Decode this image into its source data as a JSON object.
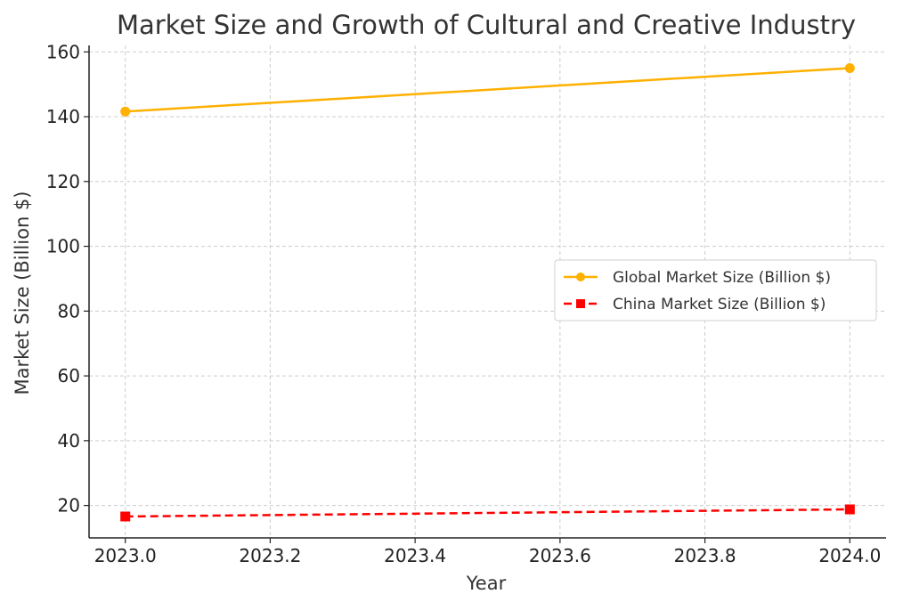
{
  "chart_data": {
    "type": "line",
    "title": "Market Size and Growth of Cultural and Creative Industry",
    "xlabel": "Year",
    "ylabel": "Market Size (Billion $)",
    "xlim": [
      2022.95,
      2024.05
    ],
    "ylim": [
      10,
      162
    ],
    "x_ticks": [
      2023.0,
      2023.2,
      2023.4,
      2023.6,
      2023.8,
      2024.0
    ],
    "x_tick_labels": [
      "2023.0",
      "2023.2",
      "2023.4",
      "2023.6",
      "2023.8",
      "2024.0"
    ],
    "y_ticks": [
      20,
      40,
      60,
      80,
      100,
      120,
      140,
      160
    ],
    "y_tick_labels": [
      "20",
      "40",
      "60",
      "80",
      "100",
      "120",
      "140",
      "160"
    ],
    "grid": true,
    "legend_position": "center-right",
    "series": [
      {
        "name": "Global Market Size (Billion $)",
        "x": [
          2023,
          2024
        ],
        "y": [
          141.6,
          155
        ],
        "color": "#FFB000",
        "line_style": "solid",
        "marker": "circle"
      },
      {
        "name": "China Market Size (Billion $)",
        "x": [
          2023,
          2024
        ],
        "y": [
          16.6,
          18.8
        ],
        "color": "#FF0000",
        "line_style": "dashed",
        "marker": "square"
      }
    ]
  }
}
